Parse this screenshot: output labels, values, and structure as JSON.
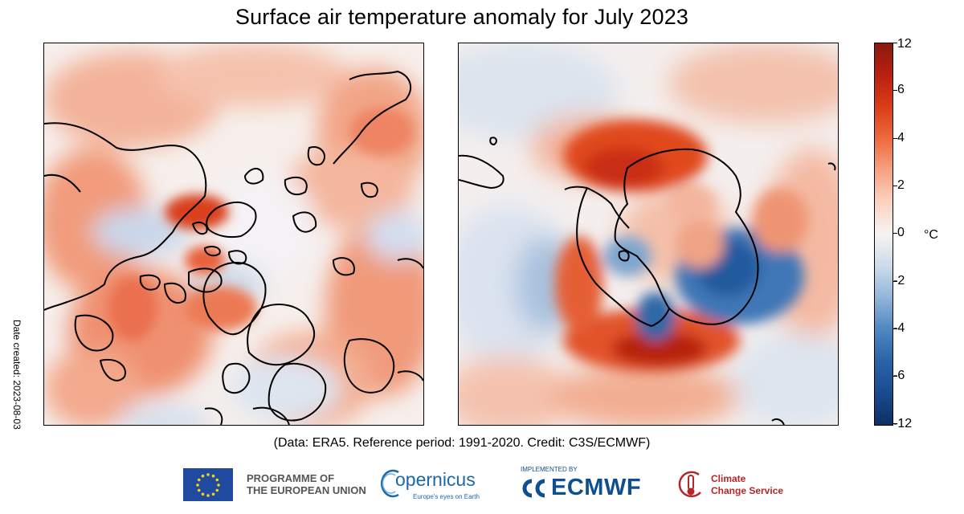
{
  "title": "Surface air temperature anomaly for July 2023",
  "date_created": "Date created: 2023-08-03",
  "colorbar": {
    "unit": "°C",
    "ticks": [
      "12",
      "6",
      "4",
      "2",
      "0",
      "-2",
      "-4",
      "-6",
      "-12"
    ],
    "colors": {
      "max": "#8a1a0f",
      "warm": "#e04a1f",
      "neutral": "#f7f3f2",
      "cool": "#4f87c0",
      "min": "#0d2f66"
    }
  },
  "credit": "(Data: ERA5.  Reference period: 1991-2020.  Credit: C3S/ECMWF)",
  "logos": {
    "eu_line1": "PROGRAMME OF",
    "eu_line2": "THE EUROPEAN UNION",
    "copernicus_name": "opernicus",
    "copernicus_tagline": "Europe's eyes on Earth",
    "ecmwf_small": "IMPLEMENTED BY",
    "ecmwf_name": "ECMWF",
    "c3s_line1": "Climate",
    "c3s_line2": "Change Service"
  },
  "icons": {
    "eu_flag": "eu-flag-icon",
    "copernicus": "copernicus-logo-icon",
    "ecmwf": "ecmwf-logo-icon",
    "c3s": "thermometer-icon"
  }
}
